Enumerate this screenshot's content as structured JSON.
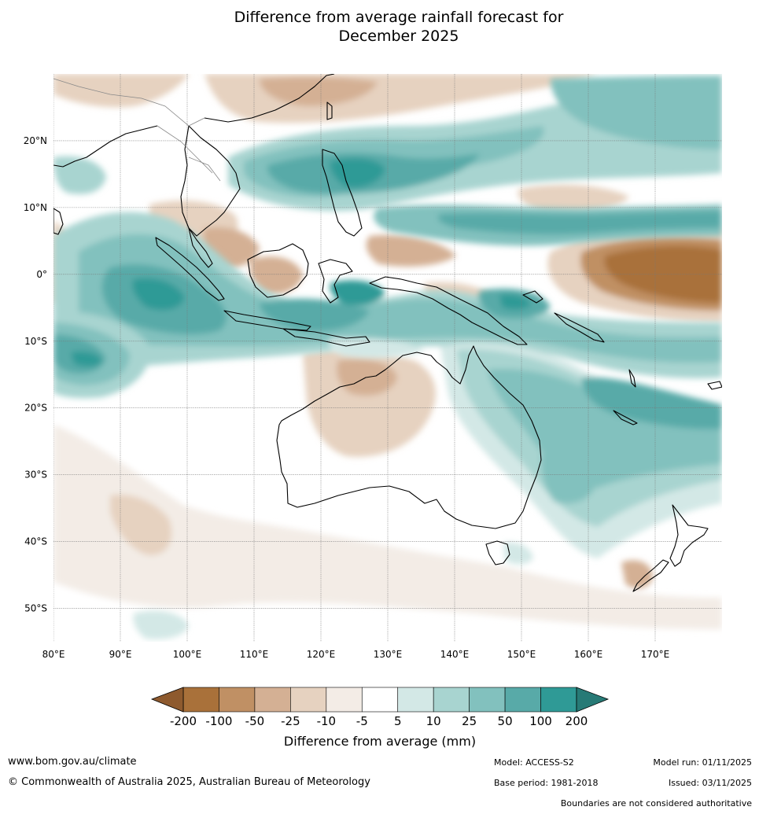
{
  "title": {
    "line1": "Difference from average rainfall forecast for",
    "line2": "December 2025"
  },
  "map": {
    "region": "Australia and surrounding region",
    "lat_labels": [
      "20°N",
      "10°N",
      "0°",
      "10°S",
      "20°S",
      "30°S",
      "40°S",
      "50°S"
    ],
    "lon_labels": [
      "80°E",
      "90°E",
      "100°E",
      "110°E",
      "120°E",
      "130°E",
      "140°E",
      "150°E",
      "160°E",
      "170°E"
    ],
    "lat_values": [
      20,
      10,
      0,
      -10,
      -20,
      -30,
      -40,
      -50
    ],
    "lon_values": [
      80,
      90,
      100,
      110,
      120,
      130,
      140,
      150,
      160,
      170
    ],
    "lon_range": [
      80,
      180
    ],
    "lat_range": [
      -55,
      30
    ]
  },
  "colorbar": {
    "label": "Difference from average (mm)",
    "ticks": [
      "-200",
      "-100",
      "-50",
      "-25",
      "-10",
      "-5",
      "5",
      "10",
      "25",
      "50",
      "100",
      "200"
    ],
    "colors": [
      "#a9713a",
      "#c09064",
      "#d4b094",
      "#e6d2c0",
      "#f3ece6",
      "#ffffff",
      "#d3e8e6",
      "#a8d4d0",
      "#82c1be",
      "#58aaa8",
      "#2f9a96"
    ],
    "extend_low_color": "#8e5a2e",
    "extend_high_color": "#277a76"
  },
  "footer": {
    "website": "www.bom.gov.au/climate",
    "copyright": "© Commonwealth of Australia 2025, Australian Bureau of Meteorology",
    "model": "Model: ACCESS-S2",
    "base_period": "Base period: 1981-2018",
    "model_run": "Model run: 01/11/2025",
    "issued": "Issued: 03/11/2025",
    "disclaimer": "Boundaries are not considered authoritative"
  }
}
